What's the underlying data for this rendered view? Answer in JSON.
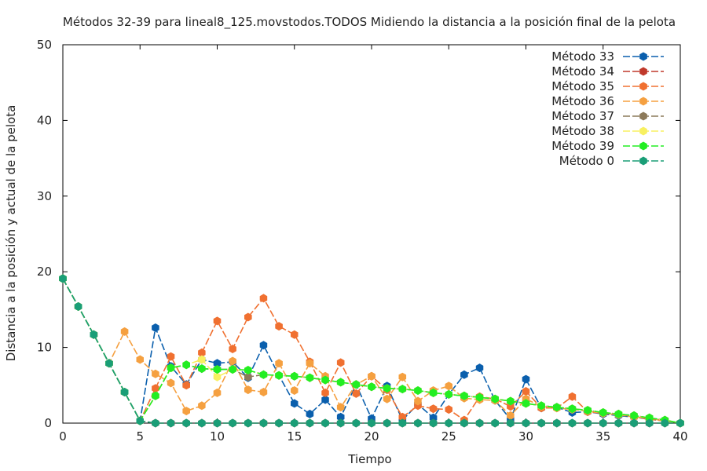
{
  "chart_data": {
    "type": "line",
    "title": "Métodos 32-39 para lineal8_125.movstodos.TODOS Midiendo la distancia a la posición final de la pelota",
    "xlabel": "Tiempo",
    "ylabel": "Distancia a la posición y actual de la pelota",
    "xlim": [
      0,
      40
    ],
    "ylim": [
      0,
      50
    ],
    "xticks": [
      0,
      5,
      10,
      15,
      20,
      25,
      30,
      35,
      40
    ],
    "yticks": [
      0,
      10,
      20,
      30,
      40,
      50
    ],
    "grid": false,
    "legend_position": "top-right",
    "x": [
      0,
      1,
      2,
      3,
      4,
      5,
      6,
      7,
      8,
      9,
      10,
      11,
      12,
      13,
      14,
      15,
      16,
      17,
      18,
      19,
      20,
      21,
      22,
      23,
      24,
      25,
      26,
      27,
      28,
      29,
      30,
      31,
      32,
      33,
      34,
      35,
      36,
      37,
      38,
      39,
      40
    ],
    "series": [
      {
        "name": "Método 33",
        "color": "#0a5fad",
        "values": [
          19.1,
          15.4,
          11.7,
          7.9,
          4.1,
          0.3,
          12.6,
          7.5,
          5.1,
          8.4,
          7.9,
          8.1,
          6.0,
          10.3,
          6.3,
          2.6,
          1.2,
          3.1,
          0.8,
          5.1,
          0.6,
          4.9,
          0.4,
          2.5,
          0.7,
          3.8,
          6.4,
          7.3,
          3.0,
          0.5,
          5.8,
          2.0,
          2.1,
          1.4,
          1.5,
          1.2,
          1.0,
          0.8,
          0.5,
          0.3,
          0.0
        ]
      },
      {
        "name": "Método 34",
        "color": "#c0392b",
        "values": [
          19.1,
          15.4,
          11.7,
          7.9,
          4.1,
          0.3,
          0.0,
          0.0,
          0.0,
          0.0,
          0.0,
          0.0,
          0.0,
          0.0,
          0.0,
          0.0,
          0.0,
          0.0,
          0.0,
          0.0,
          0.0,
          0.0,
          0.0,
          0.0,
          0.0,
          0.0,
          0.0,
          0.0,
          0.0,
          0.0,
          0.0,
          0.0,
          0.0,
          0.0,
          0.0,
          0.0,
          0.0,
          0.0,
          0.0,
          0.0,
          0.0
        ]
      },
      {
        "name": "Método 35",
        "color": "#f07030",
        "values": [
          19.1,
          15.4,
          11.7,
          7.9,
          4.1,
          0.3,
          4.6,
          8.8,
          5.0,
          9.3,
          13.5,
          9.8,
          14.0,
          16.5,
          12.8,
          11.7,
          8.1,
          4.0,
          8.0,
          3.9,
          6.2,
          4.4,
          0.8,
          2.3,
          1.9,
          1.8,
          0.4,
          3.5,
          3.2,
          2.2,
          4.2,
          2.0,
          2.0,
          3.5,
          1.5,
          1.3,
          1.1,
          0.9,
          0.5,
          0.3,
          0.0
        ]
      },
      {
        "name": "Método 36",
        "color": "#f5a040",
        "values": [
          19.1,
          15.4,
          11.7,
          7.9,
          12.1,
          8.4,
          6.5,
          5.3,
          1.6,
          2.3,
          4.0,
          8.2,
          4.4,
          4.1,
          7.9,
          4.3,
          7.9,
          6.2,
          2.1,
          5.1,
          6.2,
          3.2,
          6.1,
          2.9,
          4.3,
          4.9,
          3.3,
          3.1,
          3.0,
          1.0,
          3.2,
          2.2,
          2.0,
          1.8,
          1.6,
          1.3,
          1.1,
          0.8,
          0.6,
          0.3,
          0.0
        ]
      },
      {
        "name": "Método 37",
        "color": "#8c7a5a",
        "values": [
          19.1,
          15.4,
          11.7,
          7.9,
          4.1,
          0.3,
          3.6,
          7.3,
          7.7,
          7.2,
          7.1,
          7.1,
          6.1,
          6.4,
          6.3,
          6.2,
          6.0,
          5.7,
          5.4,
          5.1,
          4.8,
          4.6,
          4.5,
          4.3,
          4.0,
          3.8,
          3.6,
          3.4,
          3.2,
          2.9,
          2.6,
          2.3,
          2.1,
          1.9,
          1.7,
          1.4,
          1.2,
          1.0,
          0.7,
          0.4,
          0.0
        ]
      },
      {
        "name": "Método 38",
        "color": "#f8f060",
        "values": [
          19.1,
          15.4,
          11.7,
          7.9,
          4.1,
          0.3,
          3.6,
          7.3,
          7.7,
          8.4,
          6.1,
          7.1,
          7.0,
          6.4,
          6.3,
          6.2,
          6.0,
          5.7,
          5.4,
          5.1,
          4.8,
          4.6,
          4.5,
          4.3,
          4.0,
          3.8,
          3.6,
          3.4,
          3.2,
          2.9,
          2.6,
          2.3,
          2.1,
          1.9,
          1.7,
          1.4,
          1.2,
          1.0,
          0.7,
          0.4,
          0.0
        ]
      },
      {
        "name": "Método 39",
        "color": "#22ee22",
        "values": [
          19.1,
          15.4,
          11.7,
          7.9,
          4.1,
          0.3,
          3.6,
          7.3,
          7.7,
          7.2,
          7.1,
          7.1,
          7.0,
          6.4,
          6.3,
          6.2,
          6.0,
          5.7,
          5.4,
          5.1,
          4.8,
          4.6,
          4.5,
          4.3,
          4.0,
          3.8,
          3.6,
          3.4,
          3.2,
          2.9,
          2.6,
          2.3,
          2.1,
          1.9,
          1.7,
          1.4,
          1.2,
          1.0,
          0.7,
          0.4,
          0.0
        ]
      },
      {
        "name": "Método 0",
        "color": "#1a9e77",
        "values": [
          19.1,
          15.4,
          11.7,
          7.9,
          4.1,
          0.3,
          0.0,
          0.0,
          0.0,
          0.0,
          0.0,
          0.0,
          0.0,
          0.0,
          0.0,
          0.0,
          0.0,
          0.0,
          0.0,
          0.0,
          0.0,
          0.0,
          0.0,
          0.0,
          0.0,
          0.0,
          0.0,
          0.0,
          0.0,
          0.0,
          0.0,
          0.0,
          0.0,
          0.0,
          0.0,
          0.0,
          0.0,
          0.0,
          0.0,
          0.0,
          0.0
        ]
      }
    ]
  }
}
